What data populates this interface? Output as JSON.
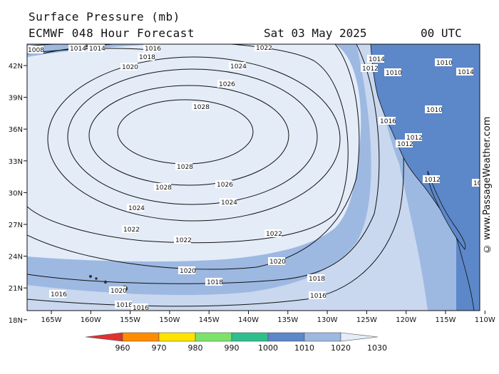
{
  "header": {
    "title": "Surface Pressure (mb)",
    "model_run": "ECMWF 048 Hour Forecast",
    "valid_date": "Sat 03 May 2025",
    "valid_time": "00 UTC"
  },
  "credit": "© www.PassageWeather.com",
  "axes": {
    "longitudes": [
      "165W",
      "160W",
      "155W",
      "150W",
      "145W",
      "140W",
      "135W",
      "130W",
      "125W",
      "120W",
      "115W",
      "110W"
    ],
    "latitudes": [
      "42N",
      "39N",
      "36N",
      "33N",
      "30N",
      "27N",
      "24N",
      "21N",
      "18N"
    ]
  },
  "isobar_labels": [
    {
      "text": "1016"
    },
    {
      "text": "1018"
    },
    {
      "text": "1020"
    },
    {
      "text": "1022"
    },
    {
      "text": "1024"
    },
    {
      "text": "1026"
    },
    {
      "text": "1028"
    },
    {
      "text": "1014"
    },
    {
      "text": "1012"
    },
    {
      "text": "1010"
    },
    {
      "text": "1008"
    }
  ],
  "legend": {
    "values": [
      "960",
      "970",
      "980",
      "990",
      "1000",
      "1010",
      "1020",
      "1030"
    ],
    "colors": [
      "#e03030",
      "#ff8c00",
      "#ffe400",
      "#7be36a",
      "#2fbf8c",
      "#5c87c9",
      "#9db9e2",
      "#e4ecf8"
    ]
  },
  "colors": {
    "ocean_1010": "#5c87c9",
    "ocean_1015": "#9db9e2",
    "ocean_1020": "#c9d8ef",
    "ocean_1025": "#e4ecf8",
    "land": "#5c87c9"
  }
}
